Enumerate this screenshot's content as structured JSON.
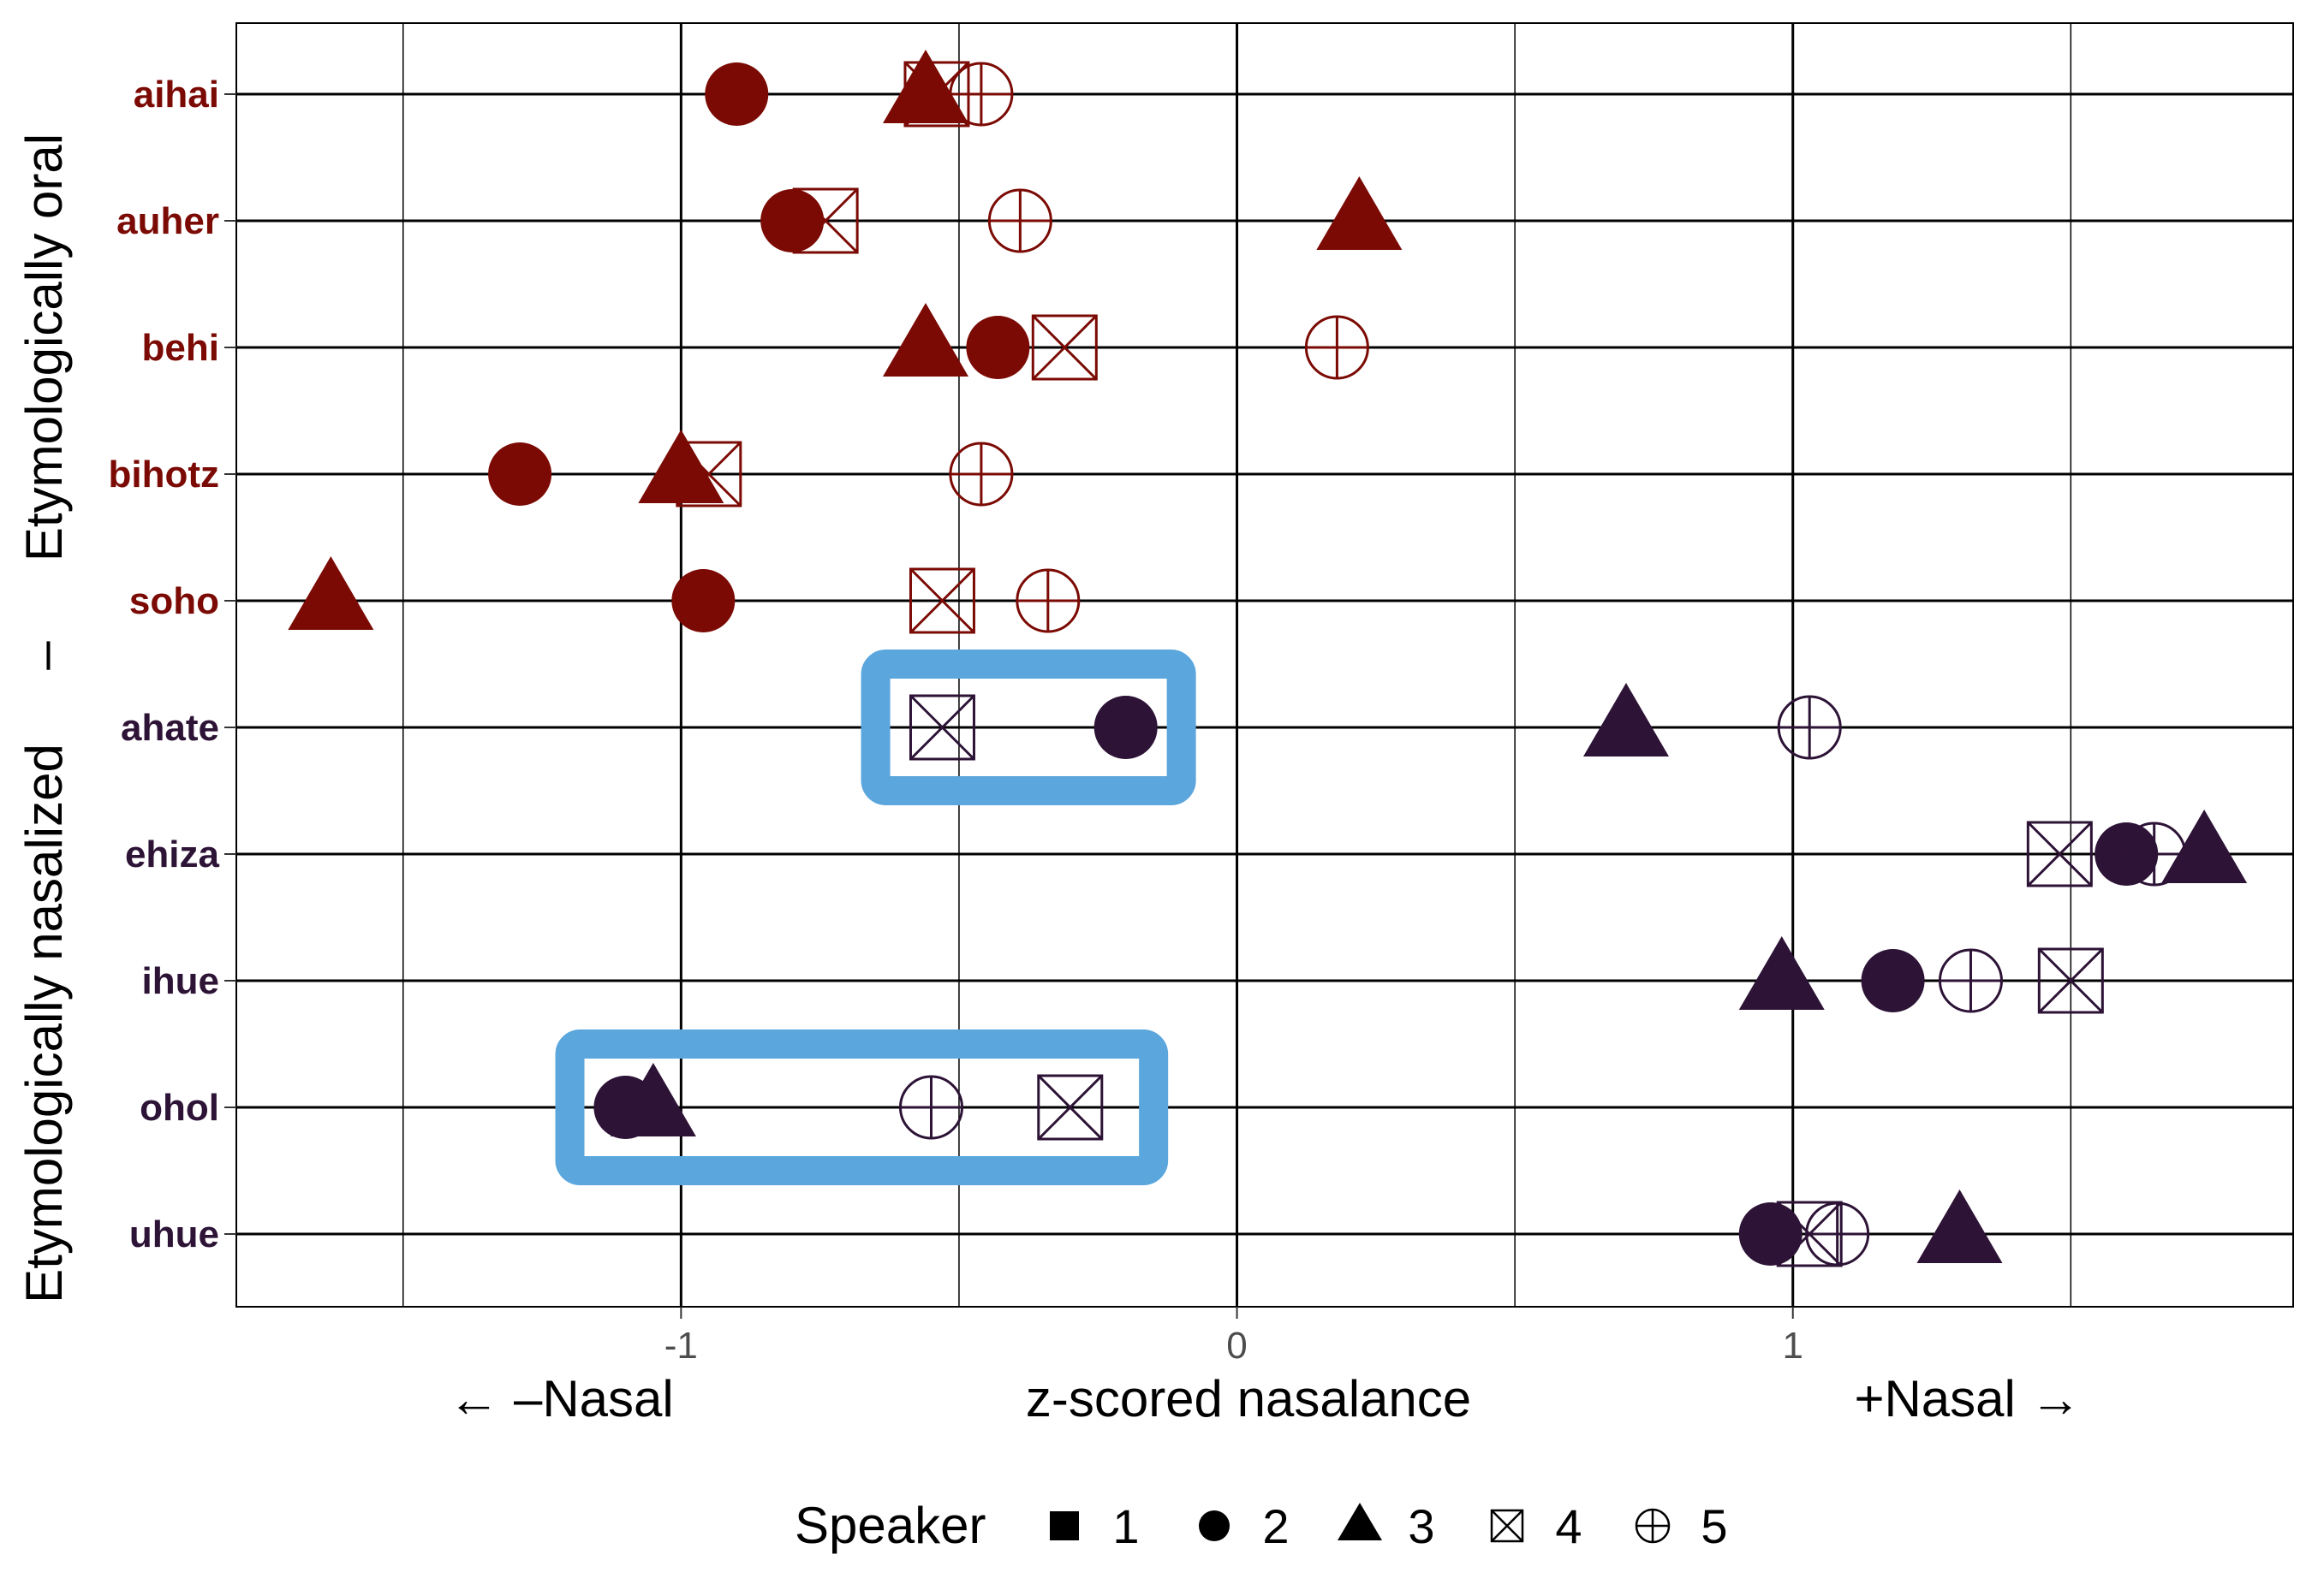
{
  "chart_data": {
    "type": "scatter",
    "title": "",
    "xlabel": "z-scored nasalance",
    "xlabel_left": "← –Nasal",
    "xlabel_right": "+Nasal →",
    "xlim": [
      -1.8,
      1.9
    ],
    "x_ticks": [
      -1,
      0,
      1
    ],
    "x_tick_labels": [
      "-1",
      "0",
      "1"
    ],
    "x_minor_gridlines": [
      -1.5,
      -0.5,
      0.5,
      1.5
    ],
    "grid": true,
    "categories": [
      "aihai",
      "auher",
      "behi",
      "bihotz",
      "soho",
      "ahate",
      "ehiza",
      "ihue",
      "ohol",
      "uhue"
    ],
    "groups": [
      {
        "label": "Etymologically oral",
        "color": "#7b0a04",
        "words": [
          "aihai",
          "auher",
          "behi",
          "bihotz",
          "soho"
        ]
      },
      {
        "label": "Etymologically nasalized",
        "color": "#2d1336",
        "words": [
          "ahate",
          "ehiza",
          "ihue",
          "ohol",
          "uhue"
        ]
      }
    ],
    "group_separator": "–",
    "legend": {
      "title": "Speaker",
      "position": "bottom",
      "entries": [
        {
          "label": "1",
          "shape": "square-filled"
        },
        {
          "label": "2",
          "shape": "circle-filled"
        },
        {
          "label": "3",
          "shape": "triangle-filled"
        },
        {
          "label": "4",
          "shape": "square-cross"
        },
        {
          "label": "5",
          "shape": "circle-plus"
        }
      ]
    },
    "series": [
      {
        "name": "2",
        "shape": "circle-filled",
        "values": [
          -0.9,
          -0.8,
          -0.43,
          -1.29,
          -0.96,
          -0.2,
          1.6,
          1.18,
          -1.1,
          0.96
        ]
      },
      {
        "name": "3",
        "shape": "triangle-filled",
        "values": [
          -0.56,
          0.22,
          -0.56,
          -1.0,
          -1.63,
          0.7,
          1.74,
          0.98,
          -1.05,
          1.3
        ]
      },
      {
        "name": "4",
        "shape": "square-cross",
        "values": [
          -0.54,
          -0.74,
          -0.31,
          -0.95,
          -0.53,
          -0.53,
          1.48,
          1.5,
          -0.3,
          1.03
        ]
      },
      {
        "name": "5",
        "shape": "circle-plus",
        "values": [
          -0.46,
          -0.39,
          0.18,
          -0.46,
          -0.34,
          1.03,
          1.65,
          1.32,
          -0.55,
          1.08
        ]
      }
    ],
    "highlights": [
      {
        "word": "ahate",
        "x_range": [
          -0.65,
          -0.1
        ],
        "color": "#5aa6dd"
      },
      {
        "word": "ohol",
        "x_range": [
          -1.2,
          -0.15
        ],
        "color": "#5aa6dd"
      }
    ]
  }
}
